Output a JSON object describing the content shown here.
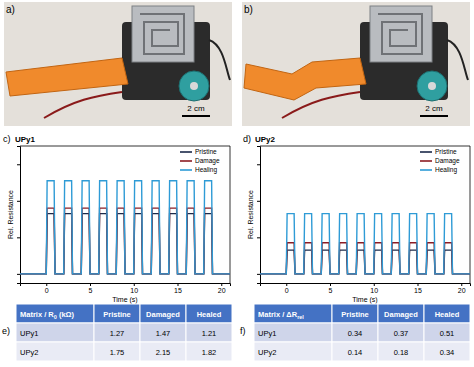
{
  "chart_data": [
    {
      "type": "line",
      "annotations": [
        "c)"
      ],
      "title": "UPy1",
      "x_label": "Time (s)",
      "y_label": "Rel. Resistance",
      "x": [
        -3,
        0,
        0.1,
        0.9,
        1,
        2,
        2.1,
        2.9,
        3,
        4,
        4.1,
        4.9,
        5,
        6,
        6.1,
        6.9,
        7,
        8,
        8.1,
        8.9,
        9,
        10,
        10.1,
        10.9,
        11,
        12,
        12.1,
        12.9,
        13,
        14,
        14.1,
        14.9,
        15,
        16,
        16.1,
        16.9,
        17,
        18,
        18.1,
        18.9,
        19,
        21
      ],
      "series": [
        {
          "name": "Pristine",
          "color": "#1b2a4a",
          "values": [
            0,
            0,
            0.33,
            0.33,
            0,
            0,
            0.33,
            0.33,
            0,
            0,
            0.33,
            0.33,
            0,
            0,
            0.33,
            0.33,
            0,
            0,
            0.33,
            0.33,
            0,
            0,
            0.33,
            0.33,
            0,
            0,
            0.33,
            0.33,
            0,
            0,
            0.33,
            0.33,
            0,
            0,
            0.33,
            0.33,
            0,
            0,
            0.33,
            0.33,
            0,
            0
          ]
        },
        {
          "name": "Damage",
          "color": "#8b1c24",
          "values": [
            0,
            0,
            0.36,
            0.36,
            0,
            0,
            0.36,
            0.36,
            0,
            0,
            0.36,
            0.36,
            0,
            0,
            0.36,
            0.36,
            0,
            0,
            0.36,
            0.36,
            0,
            0,
            0.36,
            0.36,
            0,
            0,
            0.36,
            0.36,
            0,
            0,
            0.36,
            0.36,
            0,
            0,
            0.36,
            0.36,
            0,
            0,
            0.36,
            0.36,
            0,
            0
          ]
        },
        {
          "name": "Healing",
          "color": "#2e9bd6",
          "values": [
            0,
            0,
            0.51,
            0.51,
            0,
            0,
            0.51,
            0.51,
            0,
            0,
            0.51,
            0.51,
            0,
            0,
            0.51,
            0.51,
            0,
            0,
            0.51,
            0.51,
            0,
            0,
            0.51,
            0.51,
            0,
            0,
            0.51,
            0.51,
            0,
            0,
            0.51,
            0.51,
            0,
            0,
            0.51,
            0.51,
            0,
            0,
            0.51,
            0.51,
            0,
            0
          ]
        }
      ],
      "xlim": [
        -3,
        21
      ],
      "xticks": [
        0,
        5,
        10,
        15,
        20
      ],
      "ylim": [
        -0.05,
        0.7
      ],
      "yticks": [
        0,
        0.2,
        0.4,
        0.6
      ],
      "tick_labels": "x",
      "legend": "upper right",
      "grid": false
    },
    {
      "type": "line",
      "annotations": [
        "d)"
      ],
      "title": "UPy2",
      "x_label": "Time (s)",
      "y_label": "Rel. Resistance",
      "x": [
        -3,
        0,
        0.1,
        0.9,
        1,
        2,
        2.1,
        2.9,
        3,
        4,
        4.1,
        4.9,
        5,
        6,
        6.1,
        6.9,
        7,
        8,
        8.1,
        8.9,
        9,
        10,
        10.1,
        10.9,
        11,
        12,
        12.1,
        12.9,
        13,
        14,
        14.1,
        14.9,
        15,
        16,
        16.1,
        16.9,
        17,
        18,
        18.1,
        18.9,
        19,
        21
      ],
      "series": [
        {
          "name": "Pristine",
          "color": "#1b2a4a",
          "values": [
            0,
            0,
            0.13,
            0.13,
            0,
            0,
            0.13,
            0.13,
            0,
            0,
            0.13,
            0.13,
            0,
            0,
            0.13,
            0.13,
            0,
            0,
            0.13,
            0.13,
            0,
            0,
            0.13,
            0.13,
            0,
            0,
            0.13,
            0.13,
            0,
            0,
            0.13,
            0.13,
            0,
            0,
            0.13,
            0.13,
            0,
            0,
            0.13,
            0.13,
            0,
            0
          ]
        },
        {
          "name": "Damage",
          "color": "#8b1c24",
          "values": [
            0,
            0,
            0.17,
            0.17,
            0,
            0,
            0.17,
            0.17,
            0,
            0,
            0.17,
            0.17,
            0,
            0,
            0.17,
            0.17,
            0,
            0,
            0.17,
            0.17,
            0,
            0,
            0.17,
            0.17,
            0,
            0,
            0.17,
            0.17,
            0,
            0,
            0.17,
            0.17,
            0,
            0,
            0.17,
            0.17,
            0,
            0,
            0.17,
            0.17,
            0,
            0
          ]
        },
        {
          "name": "Healing",
          "color": "#2e9bd6",
          "values": [
            0,
            0,
            0.33,
            0.33,
            0,
            0,
            0.33,
            0.33,
            0,
            0,
            0.33,
            0.33,
            0,
            0,
            0.33,
            0.33,
            0,
            0,
            0.33,
            0.33,
            0,
            0,
            0.33,
            0.33,
            0,
            0,
            0.33,
            0.33,
            0,
            0,
            0.33,
            0.33,
            0,
            0,
            0.33,
            0.33,
            0,
            0,
            0.33,
            0.33,
            0,
            0
          ]
        }
      ],
      "xlim": [
        -3,
        21
      ],
      "xticks": [
        0,
        5,
        10,
        15,
        20
      ],
      "ylim": [
        -0.05,
        0.7
      ],
      "yticks": [
        0,
        0.2,
        0.4,
        0.6
      ],
      "tick_labels": "x",
      "legend": "upper right",
      "grid": false
    }
  ],
  "photos": [
    {
      "label": "a)",
      "scale_bar": "2 cm"
    },
    {
      "label": "b)",
      "scale_bar": "2 cm"
    }
  ],
  "tables": [
    {
      "label": "e)",
      "header": {
        "main": "Matrix / R",
        "sub": "0",
        "tail": " (kΩ)"
      },
      "columns": [
        "Pristine",
        "Damaged",
        "Healed"
      ],
      "rows": [
        {
          "name": "UPy1",
          "values": [
            1.27,
            1.47,
            1.21
          ]
        },
        {
          "name": "UPy2",
          "values": [
            1.75,
            2.15,
            1.82
          ]
        }
      ]
    },
    {
      "label": "f)",
      "header": {
        "main": "Matrix / ΔR",
        "sub": "rel"
      },
      "columns": [
        "Pristine",
        "Damaged",
        "Healed"
      ],
      "rows": [
        {
          "name": "UPy1",
          "values": [
            0.34,
            0.37,
            0.51
          ]
        },
        {
          "name": "UPy2",
          "values": [
            0.14,
            0.18,
            0.34
          ]
        }
      ]
    }
  ]
}
